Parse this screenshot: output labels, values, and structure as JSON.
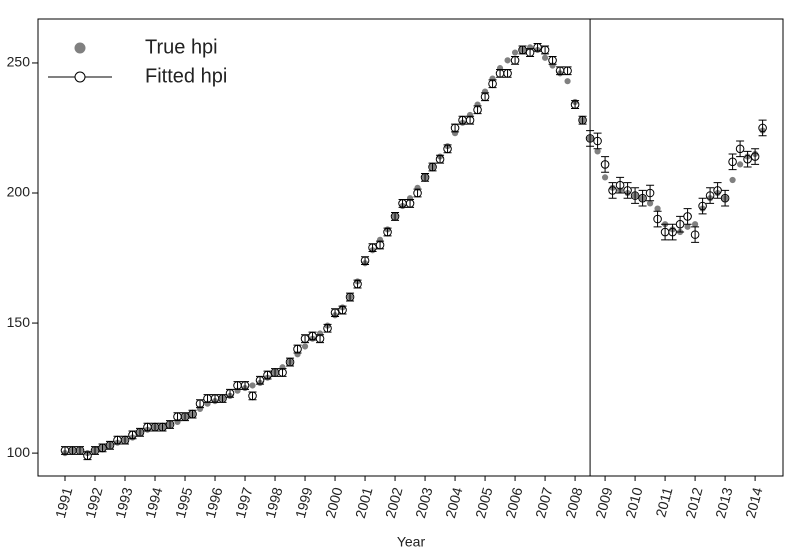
{
  "chart_data": {
    "type": "scatter-errorbar",
    "x_label": "Year",
    "xlim": [
      1990.1,
      2014.93
    ],
    "ylim": [
      91.2,
      266.9
    ],
    "xticks": [
      1991,
      1992,
      1993,
      1994,
      1995,
      1996,
      1997,
      1998,
      1999,
      2000,
      2001,
      2002,
      2003,
      2004,
      2005,
      2006,
      2007,
      2008,
      2009,
      2010,
      2011,
      2012,
      2013,
      2014
    ],
    "yticks": [
      100,
      150,
      200,
      250
    ],
    "vline": 2008.5,
    "legend": "top-left",
    "x": [
      1991,
      1991.25,
      1991.5,
      1991.75,
      1992,
      1992.25,
      1992.5,
      1992.75,
      1993,
      1993.25,
      1993.5,
      1993.75,
      1994,
      1994.25,
      1994.5,
      1994.75,
      1995,
      1995.25,
      1995.5,
      1995.75,
      1996,
      1996.25,
      1996.5,
      1996.75,
      1997,
      1997.25,
      1997.5,
      1997.75,
      1998,
      1998.25,
      1998.5,
      1998.75,
      1999,
      1999.25,
      1999.5,
      1999.75,
      2000,
      2000.25,
      2000.5,
      2000.75,
      2001,
      2001.25,
      2001.5,
      2001.75,
      2002,
      2002.25,
      2002.5,
      2002.75,
      2003,
      2003.25,
      2003.5,
      2003.75,
      2004,
      2004.25,
      2004.5,
      2004.75,
      2005,
      2005.25,
      2005.5,
      2005.75,
      2006,
      2006.25,
      2006.5,
      2006.75,
      2007,
      2007.25,
      2007.5,
      2007.75,
      2008,
      2008.25,
      2008.5,
      2008.75,
      2009,
      2009.25,
      2009.5,
      2009.75,
      2010,
      2010.25,
      2010.5,
      2010.75,
      2011,
      2011.25,
      2011.5,
      2011.75,
      2012,
      2012.25,
      2012.5,
      2012.75,
      2013,
      2013.25,
      2013.5,
      2013.75,
      2014,
      2014.25
    ],
    "series": [
      {
        "name": "True hpi",
        "color": "#808080",
        "marker": "filled",
        "values": [
          100,
          101,
          101,
          100,
          101,
          102,
          103,
          104,
          105,
          106,
          108,
          109,
          110,
          110,
          111,
          112,
          114,
          115,
          117,
          119,
          120,
          121,
          122,
          124,
          125,
          126,
          127,
          129,
          131,
          133,
          135,
          138,
          141,
          144,
          146,
          149,
          153,
          156,
          160,
          166,
          173,
          178,
          182,
          186,
          191,
          195,
          198,
          202,
          206,
          210,
          214,
          218,
          223,
          227,
          230,
          234,
          239,
          244,
          248,
          251,
          254,
          255,
          256,
          255,
          252,
          249,
          246,
          243,
          235,
          228,
          221,
          216,
          206,
          202,
          201,
          200,
          199,
          198,
          196,
          194,
          188,
          186,
          185,
          187,
          188,
          194,
          198,
          200,
          198,
          205,
          211,
          214,
          215,
          224
        ]
      },
      {
        "name": "Fitted hpi",
        "color": "#000000",
        "marker": "open",
        "values": [
          101,
          101,
          101,
          99,
          101,
          102,
          103,
          105,
          105,
          107,
          108,
          110,
          110,
          110,
          111,
          114,
          114,
          115,
          119,
          121,
          121,
          121,
          123,
          126,
          126,
          122,
          128,
          130,
          131,
          131,
          135,
          140,
          144,
          145,
          144,
          148,
          154,
          155,
          160,
          165,
          174,
          179,
          180,
          185,
          191,
          196,
          196,
          200,
          206,
          210,
          213,
          217,
          225,
          228,
          228,
          232,
          237,
          242,
          246,
          246,
          251,
          255,
          254,
          256,
          255,
          251,
          247,
          247,
          234,
          228,
          221,
          220,
          211,
          201,
          203,
          201,
          199,
          198,
          200,
          190,
          185,
          185,
          188,
          191,
          184,
          195,
          199,
          201,
          198,
          212,
          217,
          213,
          214,
          225
        ],
        "errors": [
          1.5,
          1.5,
          1.5,
          1.5,
          1.5,
          1.5,
          1.5,
          1.5,
          1.5,
          1.5,
          1.5,
          1.5,
          1.5,
          1.5,
          1.5,
          1.5,
          1.5,
          1.5,
          1.5,
          1.5,
          1.5,
          1.5,
          1.5,
          1.5,
          1.5,
          1.5,
          1.5,
          1.5,
          1.5,
          1.5,
          1.5,
          1.5,
          1.5,
          1.5,
          1.5,
          1.5,
          1.5,
          1.5,
          1.5,
          1.5,
          1.5,
          1.5,
          1.5,
          1.5,
          1.5,
          1.5,
          1.5,
          1.5,
          1.5,
          1.5,
          1.5,
          1.5,
          1.5,
          1.5,
          1.5,
          1.5,
          1.5,
          1.5,
          1.5,
          1.5,
          1.5,
          1.5,
          1.5,
          1.5,
          1.5,
          1.5,
          1.5,
          1.5,
          1.5,
          1.5,
          3,
          3,
          3,
          3,
          3,
          3,
          3,
          3,
          3,
          3,
          3,
          3,
          3,
          3,
          3,
          3,
          3,
          3,
          3,
          3,
          3,
          3,
          3,
          3
        ]
      }
    ]
  }
}
